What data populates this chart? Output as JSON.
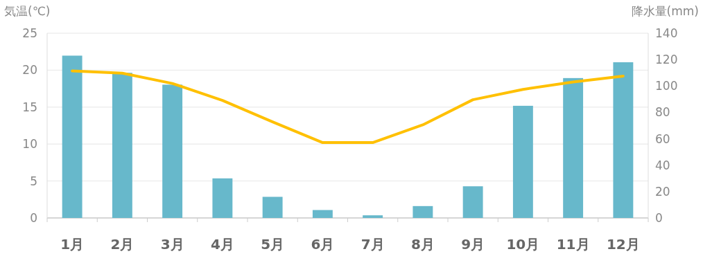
{
  "chart_data": {
    "type": "bar",
    "categories": [
      "1月",
      "2月",
      "3月",
      "4月",
      "5月",
      "6月",
      "7月",
      "8月",
      "9月",
      "10月",
      "11月",
      "12月"
    ],
    "series": [
      {
        "axis": "y2",
        "color": "#67b8cb",
        "values": [
          123,
          110,
          101,
          30,
          16,
          6,
          2,
          9,
          24,
          85,
          106,
          118
        ]
      },
      {
        "type": "line",
        "color": "#ffc000",
        "values": [
          19.9,
          19.6,
          18.2,
          15.9,
          13,
          10.2,
          10.2,
          12.6,
          16,
          17.4,
          18.4,
          19.2
        ]
      }
    ],
    "ylabel": "気温(℃)",
    "y2label": "降水量(mm)",
    "ylim": [
      0,
      25
    ],
    "yticks": [
      0,
      5,
      10,
      15,
      20,
      25
    ],
    "y2lim": [
      0,
      140
    ],
    "y2ticks": [
      0,
      20,
      40,
      60,
      80,
      100,
      120,
      140
    ],
    "grid": "y"
  }
}
